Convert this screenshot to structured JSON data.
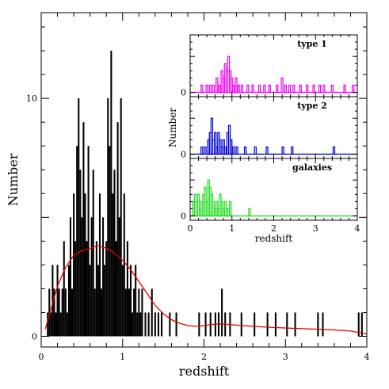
{
  "chart_data": [
    {
      "type": "bar",
      "xlabel": "redshift",
      "ylabel": "Number",
      "xlim": [
        0,
        4
      ],
      "ylim": [
        -0.45,
        13.6
      ],
      "xticks": [
        0,
        1,
        2,
        3,
        4
      ],
      "yticks": [
        0,
        10
      ],
      "bin_width": 0.02,
      "series": [
        {
          "bins": [
            [
              0.08,
              1
            ],
            [
              0.1,
              2
            ],
            [
              0.12,
              1
            ],
            [
              0.14,
              3
            ],
            [
              0.16,
              2
            ],
            [
              0.18,
              1
            ],
            [
              0.2,
              3
            ],
            [
              0.22,
              2
            ],
            [
              0.24,
              1
            ],
            [
              0.26,
              2
            ],
            [
              0.28,
              4
            ],
            [
              0.3,
              2
            ],
            [
              0.32,
              1
            ],
            [
              0.34,
              3
            ],
            [
              0.36,
              5
            ],
            [
              0.38,
              2
            ],
            [
              0.4,
              6
            ],
            [
              0.42,
              4
            ],
            [
              0.44,
              8
            ],
            [
              0.46,
              10
            ],
            [
              0.48,
              7
            ],
            [
              0.5,
              5
            ],
            [
              0.52,
              9
            ],
            [
              0.54,
              6
            ],
            [
              0.56,
              4
            ],
            [
              0.58,
              8
            ],
            [
              0.6,
              3
            ],
            [
              0.62,
              5
            ],
            [
              0.64,
              7
            ],
            [
              0.66,
              2
            ],
            [
              0.68,
              4
            ],
            [
              0.7,
              3
            ],
            [
              0.72,
              6
            ],
            [
              0.74,
              2
            ],
            [
              0.76,
              5
            ],
            [
              0.78,
              3
            ],
            [
              0.8,
              4
            ],
            [
              0.82,
              10
            ],
            [
              0.84,
              8
            ],
            [
              0.86,
              12
            ],
            [
              0.88,
              6
            ],
            [
              0.9,
              7
            ],
            [
              0.92,
              4
            ],
            [
              0.94,
              9
            ],
            [
              0.96,
              5
            ],
            [
              0.98,
              10
            ],
            [
              1.0,
              3
            ],
            [
              1.02,
              6
            ],
            [
              1.04,
              2
            ],
            [
              1.06,
              4
            ],
            [
              1.08,
              2
            ],
            [
              1.1,
              3
            ],
            [
              1.12,
              1
            ],
            [
              1.14,
              2
            ],
            [
              1.16,
              3
            ],
            [
              1.18,
              1
            ],
            [
              1.2,
              2
            ],
            [
              1.22,
              1
            ],
            [
              1.24,
              2
            ],
            [
              1.28,
              1
            ],
            [
              1.32,
              1
            ],
            [
              1.36,
              2
            ],
            [
              1.4,
              1
            ],
            [
              1.44,
              1
            ],
            [
              1.48,
              1
            ],
            [
              1.58,
              1
            ],
            [
              1.66,
              1
            ],
            [
              1.94,
              1
            ],
            [
              2.02,
              1
            ],
            [
              2.08,
              1
            ],
            [
              2.14,
              1
            ],
            [
              2.18,
              1
            ],
            [
              2.22,
              2
            ],
            [
              2.26,
              1
            ],
            [
              2.32,
              1
            ],
            [
              2.46,
              1
            ],
            [
              2.62,
              1
            ],
            [
              2.78,
              1
            ],
            [
              2.88,
              1
            ],
            [
              3.02,
              1
            ],
            [
              3.12,
              1
            ],
            [
              3.4,
              1
            ],
            [
              3.46,
              1
            ],
            [
              3.9,
              1
            ],
            [
              3.94,
              1
            ]
          ]
        },
        {
          "kind": "curve",
          "color": "#e00000",
          "points": [
            [
              0.05,
              0.3
            ],
            [
              0.1,
              0.9
            ],
            [
              0.15,
              1.5
            ],
            [
              0.2,
              2.1
            ],
            [
              0.3,
              2.9
            ],
            [
              0.4,
              3.4
            ],
            [
              0.5,
              3.6
            ],
            [
              0.6,
              3.7
            ],
            [
              0.7,
              3.8
            ],
            [
              0.8,
              3.7
            ],
            [
              0.9,
              3.5
            ],
            [
              1.0,
              3.2
            ],
            [
              1.1,
              2.8
            ],
            [
              1.2,
              2.3
            ],
            [
              1.3,
              1.8
            ],
            [
              1.4,
              1.3
            ],
            [
              1.5,
              0.95
            ],
            [
              1.6,
              0.7
            ],
            [
              1.7,
              0.55
            ],
            [
              1.8,
              0.45
            ],
            [
              1.9,
              0.42
            ],
            [
              2.0,
              0.45
            ],
            [
              2.1,
              0.5
            ],
            [
              2.2,
              0.52
            ],
            [
              2.3,
              0.5
            ],
            [
              2.4,
              0.47
            ],
            [
              2.6,
              0.42
            ],
            [
              2.8,
              0.38
            ],
            [
              3.0,
              0.35
            ],
            [
              3.2,
              0.32
            ],
            [
              3.4,
              0.3
            ],
            [
              3.6,
              0.27
            ],
            [
              3.8,
              0.22
            ],
            [
              4.0,
              0.1
            ]
          ]
        }
      ]
    },
    {
      "type": "bar",
      "title": "type 1",
      "color": "#ee00ee",
      "xlim": [
        0,
        4
      ],
      "ylim": [
        -0.6,
        8
      ],
      "yticks": [
        0
      ],
      "bin_width": 0.04,
      "series": [
        {
          "bins": [
            [
              0.28,
              1
            ],
            [
              0.4,
              1
            ],
            [
              0.48,
              1
            ],
            [
              0.56,
              1
            ],
            [
              0.64,
              2
            ],
            [
              0.7,
              1
            ],
            [
              0.76,
              3
            ],
            [
              0.8,
              2
            ],
            [
              0.84,
              4
            ],
            [
              0.88,
              3
            ],
            [
              0.92,
              5
            ],
            [
              0.96,
              3
            ],
            [
              1.0,
              2
            ],
            [
              1.04,
              1
            ],
            [
              1.1,
              2
            ],
            [
              1.16,
              1
            ],
            [
              1.24,
              1
            ],
            [
              1.38,
              1
            ],
            [
              1.5,
              1
            ],
            [
              1.66,
              1
            ],
            [
              1.78,
              1
            ],
            [
              1.9,
              1
            ],
            [
              2.08,
              1
            ],
            [
              2.2,
              2
            ],
            [
              2.28,
              1
            ],
            [
              2.38,
              1
            ],
            [
              2.48,
              1
            ],
            [
              2.64,
              1
            ],
            [
              2.8,
              1
            ],
            [
              2.96,
              1
            ],
            [
              3.1,
              1
            ],
            [
              3.2,
              1
            ],
            [
              3.4,
              1
            ],
            [
              3.7,
              1
            ],
            [
              3.9,
              1
            ]
          ]
        }
      ]
    },
    {
      "type": "bar",
      "title": "type 2",
      "ylabel": "Number",
      "color": "#0000cc",
      "xlim": [
        0,
        4
      ],
      "ylim": [
        -0.6,
        8
      ],
      "yticks": [
        0
      ],
      "bin_width": 0.04,
      "series": [
        {
          "bins": [
            [
              0.28,
              1
            ],
            [
              0.36,
              1
            ],
            [
              0.44,
              2
            ],
            [
              0.48,
              3
            ],
            [
              0.52,
              5
            ],
            [
              0.56,
              2
            ],
            [
              0.6,
              3
            ],
            [
              0.64,
              1
            ],
            [
              0.68,
              3
            ],
            [
              0.72,
              2
            ],
            [
              0.76,
              1
            ],
            [
              0.8,
              2
            ],
            [
              0.84,
              1
            ],
            [
              0.9,
              3
            ],
            [
              0.94,
              4
            ],
            [
              0.98,
              2
            ],
            [
              1.04,
              1
            ],
            [
              1.12,
              1
            ],
            [
              1.32,
              1
            ],
            [
              1.56,
              1
            ],
            [
              1.84,
              1
            ],
            [
              2.22,
              1
            ],
            [
              2.44,
              1
            ],
            [
              3.44,
              1
            ]
          ]
        }
      ]
    },
    {
      "type": "bar",
      "title": "galaxies",
      "xlabel": "redshift",
      "color": "#22dd22",
      "xlim": [
        0,
        4
      ],
      "ylim": [
        -0.6,
        8
      ],
      "xticks": [
        0,
        1,
        2,
        3,
        4
      ],
      "yticks": [
        0
      ],
      "bin_width": 0.04,
      "series": [
        {
          "bins": [
            [
              0.08,
              2
            ],
            [
              0.12,
              3
            ],
            [
              0.16,
              2
            ],
            [
              0.2,
              3
            ],
            [
              0.24,
              1
            ],
            [
              0.28,
              2
            ],
            [
              0.32,
              3
            ],
            [
              0.36,
              4
            ],
            [
              0.4,
              2
            ],
            [
              0.44,
              5
            ],
            [
              0.48,
              4
            ],
            [
              0.52,
              3
            ],
            [
              0.56,
              2
            ],
            [
              0.6,
              1
            ],
            [
              0.64,
              2
            ],
            [
              0.68,
              1
            ],
            [
              0.72,
              3
            ],
            [
              0.76,
              2
            ],
            [
              0.8,
              1
            ],
            [
              0.84,
              2
            ],
            [
              0.88,
              1
            ],
            [
              0.92,
              1
            ],
            [
              0.96,
              2
            ],
            [
              1.42,
              1
            ]
          ]
        }
      ]
    }
  ]
}
